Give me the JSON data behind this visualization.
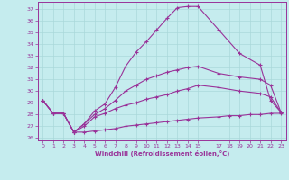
{
  "xlabel": "Windchill (Refroidissement éolien,°C)",
  "background_color": "#c5ecee",
  "grid_color": "#aad8da",
  "line_color": "#993399",
  "spine_color": "#993399",
  "ylim": [
    25.8,
    37.6
  ],
  "xlim": [
    -0.5,
    23.5
  ],
  "yticks": [
    26,
    27,
    28,
    29,
    30,
    31,
    32,
    33,
    34,
    35,
    36,
    37
  ],
  "xticks": [
    0,
    1,
    2,
    3,
    4,
    5,
    6,
    7,
    8,
    9,
    10,
    11,
    12,
    13,
    14,
    15,
    17,
    18,
    19,
    20,
    21,
    22,
    23
  ],
  "xtick_labels": [
    "0",
    "1",
    "2",
    "3",
    "4",
    "5",
    "6",
    "7",
    "8",
    "9",
    "10",
    "11",
    "12",
    "13",
    "14",
    "15",
    "17",
    "18",
    "19",
    "20",
    "21",
    "22",
    "23"
  ],
  "lines": [
    {
      "x": [
        0,
        1,
        2,
        3,
        4,
        5,
        6,
        7,
        8,
        9,
        10,
        11,
        12,
        13,
        14,
        15,
        17,
        19,
        21,
        22,
        23
      ],
      "y": [
        29.2,
        28.1,
        28.1,
        26.5,
        27.2,
        28.3,
        28.9,
        30.3,
        32.1,
        33.3,
        34.2,
        35.2,
        36.2,
        37.1,
        37.2,
        37.2,
        35.2,
        33.2,
        32.2,
        29.2,
        28.2
      ]
    },
    {
      "x": [
        0,
        1,
        2,
        3,
        4,
        5,
        6,
        7,
        8,
        9,
        10,
        11,
        12,
        13,
        14,
        15,
        17,
        19,
        21,
        22,
        23
      ],
      "y": [
        29.2,
        28.1,
        28.1,
        26.5,
        27.2,
        28.0,
        28.5,
        29.2,
        30.0,
        30.5,
        31.0,
        31.3,
        31.6,
        31.8,
        32.0,
        32.1,
        31.5,
        31.2,
        31.0,
        30.5,
        28.2
      ]
    },
    {
      "x": [
        0,
        1,
        2,
        3,
        4,
        5,
        6,
        7,
        8,
        9,
        10,
        11,
        12,
        13,
        14,
        15,
        17,
        19,
        21,
        22,
        23
      ],
      "y": [
        29.2,
        28.1,
        28.1,
        26.5,
        27.0,
        27.8,
        28.1,
        28.5,
        28.8,
        29.0,
        29.3,
        29.5,
        29.7,
        30.0,
        30.2,
        30.5,
        30.3,
        30.0,
        29.8,
        29.5,
        28.2
      ]
    },
    {
      "x": [
        0,
        1,
        2,
        3,
        4,
        5,
        6,
        7,
        8,
        9,
        10,
        11,
        12,
        13,
        14,
        15,
        17,
        18,
        19,
        20,
        21,
        22,
        23
      ],
      "y": [
        29.2,
        28.1,
        28.1,
        26.5,
        26.5,
        26.6,
        26.7,
        26.8,
        27.0,
        27.1,
        27.2,
        27.3,
        27.4,
        27.5,
        27.6,
        27.7,
        27.8,
        27.9,
        27.9,
        28.0,
        28.0,
        28.1,
        28.1
      ]
    }
  ]
}
